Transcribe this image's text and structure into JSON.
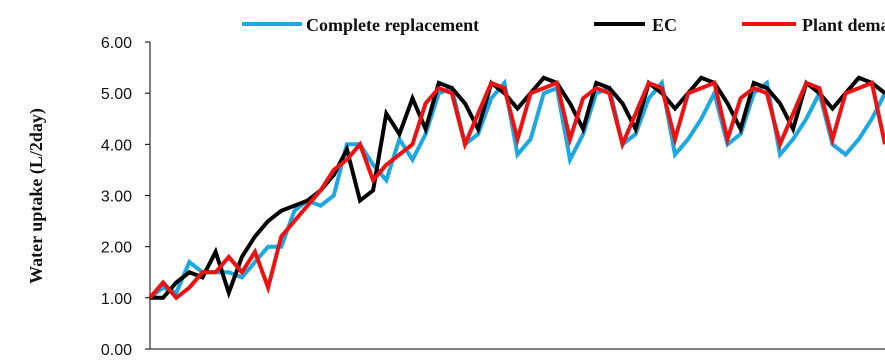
{
  "chart_data": {
    "type": "line",
    "title": "",
    "xlabel": "",
    "ylabel": "Water uptake (L/2day)",
    "ylim": [
      0,
      6
    ],
    "y_ticks": [
      "0.00",
      "1.00",
      "2.00",
      "3.00",
      "4.00",
      "5.00",
      "6.00"
    ],
    "grid": false,
    "legend_position": "top",
    "x": [
      1,
      2,
      3,
      4,
      5,
      6,
      7,
      8,
      9,
      10,
      11,
      12,
      13,
      14,
      15,
      16,
      17,
      18,
      19,
      20,
      21,
      22,
      23,
      24,
      25,
      26,
      27,
      28,
      29,
      30,
      31,
      32,
      33,
      34,
      35,
      36,
      37,
      38,
      39,
      40,
      41,
      42,
      43,
      44,
      45,
      46,
      47,
      48,
      49,
      50,
      51,
      52,
      53,
      54,
      55,
      56,
      57
    ],
    "series": [
      {
        "name": "Complete replacement",
        "color": "#1ca8e3",
        "values": [
          1.0,
          1.2,
          1.1,
          1.7,
          1.5,
          1.5,
          1.5,
          1.4,
          1.7,
          2.0,
          2.0,
          2.7,
          2.9,
          2.8,
          3.0,
          4.0,
          4.0,
          3.6,
          3.3,
          4.1,
          3.7,
          4.2,
          5.0,
          5.1,
          4.0,
          4.2,
          4.9,
          5.2,
          3.8,
          4.1,
          5.0,
          5.1,
          3.7,
          4.2,
          5.0,
          5.1,
          4.0,
          4.2,
          4.9,
          5.2,
          3.8,
          4.1,
          4.5,
          5.0,
          4.0,
          4.2,
          5.0,
          5.2,
          3.8,
          4.1,
          4.5,
          5.0,
          4.0,
          3.8,
          4.1,
          4.5,
          5.0
        ]
      },
      {
        "name": "EC",
        "color": "#000000",
        "values": [
          1.0,
          1.0,
          1.3,
          1.5,
          1.4,
          1.9,
          1.1,
          1.8,
          2.2,
          2.5,
          2.7,
          2.8,
          2.9,
          3.1,
          3.4,
          3.9,
          2.9,
          3.1,
          4.6,
          4.2,
          4.9,
          4.3,
          5.2,
          5.1,
          4.8,
          4.3,
          5.2,
          5.0,
          4.7,
          5.0,
          5.3,
          5.2,
          4.8,
          4.3,
          5.2,
          5.1,
          4.8,
          4.3,
          5.2,
          5.0,
          4.7,
          5.0,
          5.3,
          5.2,
          4.8,
          4.3,
          5.2,
          5.1,
          4.8,
          4.3,
          5.2,
          5.0,
          4.7,
          5.0,
          5.3,
          5.2,
          5.0
        ]
      },
      {
        "name": "Plant demand",
        "color": "#ee1111",
        "values": [
          1.0,
          1.3,
          1.0,
          1.2,
          1.5,
          1.5,
          1.8,
          1.5,
          1.9,
          1.2,
          2.2,
          2.5,
          2.8,
          3.1,
          3.5,
          3.7,
          4.0,
          3.3,
          3.6,
          3.8,
          4.0,
          4.8,
          5.1,
          5.0,
          4.0,
          4.6,
          5.2,
          5.1,
          4.1,
          5.0,
          5.1,
          5.2,
          4.1,
          4.9,
          5.1,
          5.0,
          4.0,
          4.6,
          5.2,
          5.1,
          4.1,
          5.0,
          5.1,
          5.2,
          4.1,
          4.9,
          5.1,
          5.0,
          4.0,
          4.6,
          5.2,
          5.1,
          4.1,
          5.0,
          5.1,
          5.2,
          4.0
        ]
      }
    ]
  }
}
